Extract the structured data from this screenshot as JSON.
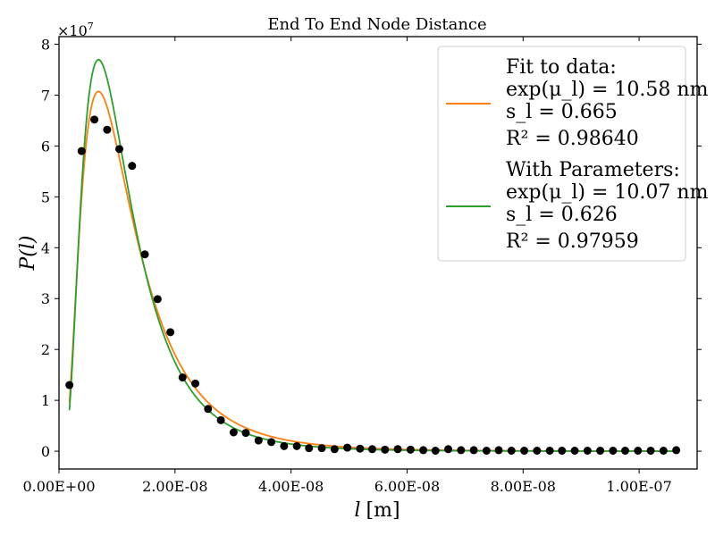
{
  "chart_data": {
    "type": "scatter",
    "title": "End To End Node Distance",
    "xlabel_symbol": "l",
    "xlabel_unit": "[m]",
    "ylabel": "P(l)",
    "y_multiplier": "×10",
    "y_multiplier_exp": "7",
    "xlim": [
      0,
      1.1e-07
    ],
    "ylim": [
      -3500000,
      81500000
    ],
    "x_ticks": [
      0,
      2e-08,
      4e-08,
      6e-08,
      8e-08,
      1e-07
    ],
    "x_tick_labels": [
      "0.00E+00",
      "2.00E-08",
      "4.00E-08",
      "6.00E-08",
      "8.00E-08",
      "1.00E-07"
    ],
    "y_ticks": [
      0,
      10000000,
      20000000,
      30000000,
      40000000,
      50000000,
      60000000,
      70000000,
      80000000
    ],
    "y_tick_labels": [
      "0",
      "1",
      "2",
      "3",
      "4",
      "5",
      "6",
      "7",
      "8"
    ],
    "grid": false,
    "legend_position": "top-right",
    "series": [
      {
        "type": "scatter",
        "color": "#000000",
        "x": [
          1.8e-09,
          3.9e-09,
          6.1e-09,
          8.3e-09,
          1.04e-08,
          1.26e-08,
          1.48e-08,
          1.7e-08,
          1.92e-08,
          2.13e-08,
          2.35e-08,
          2.57e-08,
          2.79e-08,
          3.01e-08,
          3.22e-08,
          3.44e-08,
          3.66e-08,
          3.88e-08,
          4.1e-08,
          4.31e-08,
          4.53e-08,
          4.75e-08,
          4.97e-08,
          5.19e-08,
          5.4e-08,
          5.62e-08,
          5.84e-08,
          6.06e-08,
          6.28e-08,
          6.49e-08,
          6.71e-08,
          6.93e-08,
          7.15e-08,
          7.37e-08,
          7.58e-08,
          7.8e-08,
          8.02e-08,
          8.24e-08,
          8.46e-08,
          8.67e-08,
          8.89e-08,
          9.11e-08,
          9.33e-08,
          9.55e-08,
          9.76e-08,
          9.98e-08,
          1.02e-07,
          1.042e-07,
          1.064e-07
        ],
        "y": [
          13000000,
          59000000,
          65200000,
          63200000,
          59400000,
          56100000,
          38700000,
          29900000,
          23400000,
          14500000,
          13300000,
          8300000,
          6100000,
          3700000,
          3600000,
          2100000,
          1800000,
          1000000,
          1000000,
          600000,
          600000,
          400000,
          700000,
          500000,
          400000,
          300000,
          400000,
          300000,
          200000,
          100000,
          400000,
          200000,
          200000,
          100000,
          200000,
          100000,
          100000,
          100000,
          100000,
          100000,
          100000,
          100000,
          100000,
          100000,
          100000,
          100000,
          100000,
          100000,
          200000
        ]
      },
      {
        "type": "line",
        "name": "Fit to data:",
        "legend_lines": [
          "Fit to data:",
          "exp(μ_l) = 10.58 nm",
          "s_l = 0.665",
          "R² = 0.98640"
        ],
        "color": "#ff7f0e",
        "mu_nm": 10.58,
        "s": 0.665
      },
      {
        "type": "line",
        "name": "With Parameters:",
        "legend_lines": [
          "With Parameters:",
          "exp(μ_l) = 10.07 nm",
          "s_l = 0.626",
          "R² = 0.97959"
        ],
        "color": "#2ca02c",
        "mu_nm": 10.07,
        "s": 0.626
      }
    ]
  }
}
